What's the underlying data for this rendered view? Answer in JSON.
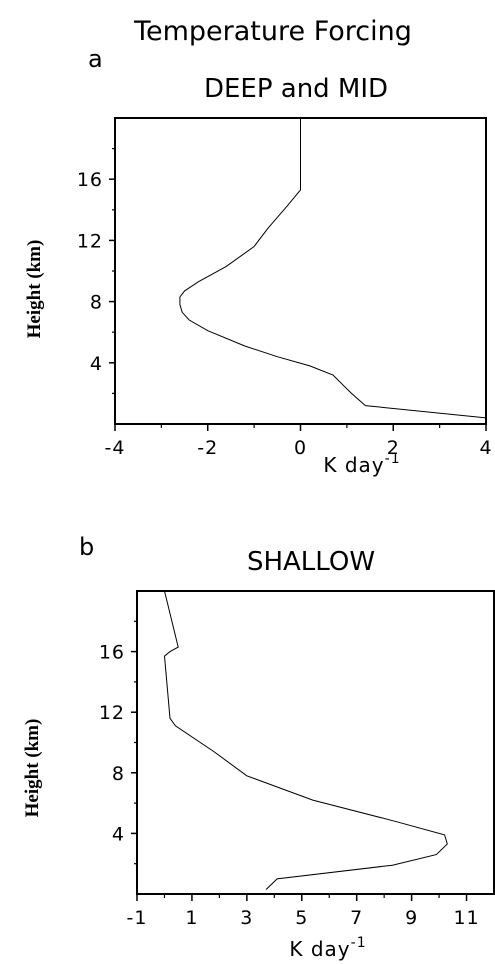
{
  "figure": {
    "title": "Temperature Forcing"
  },
  "chart_data": [
    {
      "type": "line",
      "panel_letter": "a",
      "title": "DEEP and MID",
      "xlabel": "K day",
      "xlabel_sup": "-1",
      "ylabel": "Height (km)",
      "xlim": [
        -4,
        4
      ],
      "ylim": [
        0,
        20
      ],
      "xticks": [
        -4,
        -2,
        0,
        2,
        4
      ],
      "xtick_labels": [
        "-4",
        "-2",
        "0",
        "2",
        "4"
      ],
      "yticks": [
        4,
        8,
        12,
        16
      ],
      "ytick_labels": [
        "4",
        "8",
        "12",
        "16"
      ],
      "grid": false,
      "series": [
        {
          "x": [
            4.0,
            1.4,
            1.1,
            0.9,
            0.7,
            0.2,
            -0.5,
            -1.2,
            -2.0,
            -2.4,
            -2.55,
            -2.6,
            -2.6,
            -2.5,
            -2.2,
            -1.6,
            -1.0,
            -0.7,
            -0.3,
            0.0,
            0.0
          ],
          "y": [
            0.4,
            1.2,
            2.0,
            2.6,
            3.2,
            3.8,
            4.4,
            5.1,
            6.1,
            6.8,
            7.3,
            7.8,
            8.3,
            8.7,
            9.3,
            10.3,
            11.6,
            12.8,
            14.2,
            15.3,
            20.0
          ]
        }
      ]
    },
    {
      "type": "line",
      "panel_letter": "b",
      "title": "SHALLOW",
      "xlabel": "K day",
      "xlabel_sup": "-1",
      "ylabel": "Height (km)",
      "xlim": [
        -1,
        12
      ],
      "ylim": [
        0,
        20
      ],
      "xticks": [
        -1,
        1,
        3,
        5,
        7,
        9,
        11
      ],
      "xtick_labels": [
        "-1",
        "1",
        "3",
        "5",
        "7",
        "9",
        "11"
      ],
      "yticks": [
        4,
        8,
        12,
        16
      ],
      "ytick_labels": [
        "4",
        "8",
        "12",
        "16"
      ],
      "grid": false,
      "series": [
        {
          "x": [
            3.7,
            4.1,
            8.3,
            9.9,
            10.3,
            10.2,
            8.4,
            5.4,
            3.0,
            1.8,
            0.4,
            0.2,
            0.0,
            0.2,
            0.5,
            0.0
          ],
          "y": [
            0.3,
            1.0,
            1.9,
            2.6,
            3.3,
            3.9,
            4.8,
            6.2,
            7.8,
            9.4,
            11.1,
            11.6,
            15.7,
            16.0,
            16.3,
            20.0
          ]
        }
      ]
    }
  ]
}
